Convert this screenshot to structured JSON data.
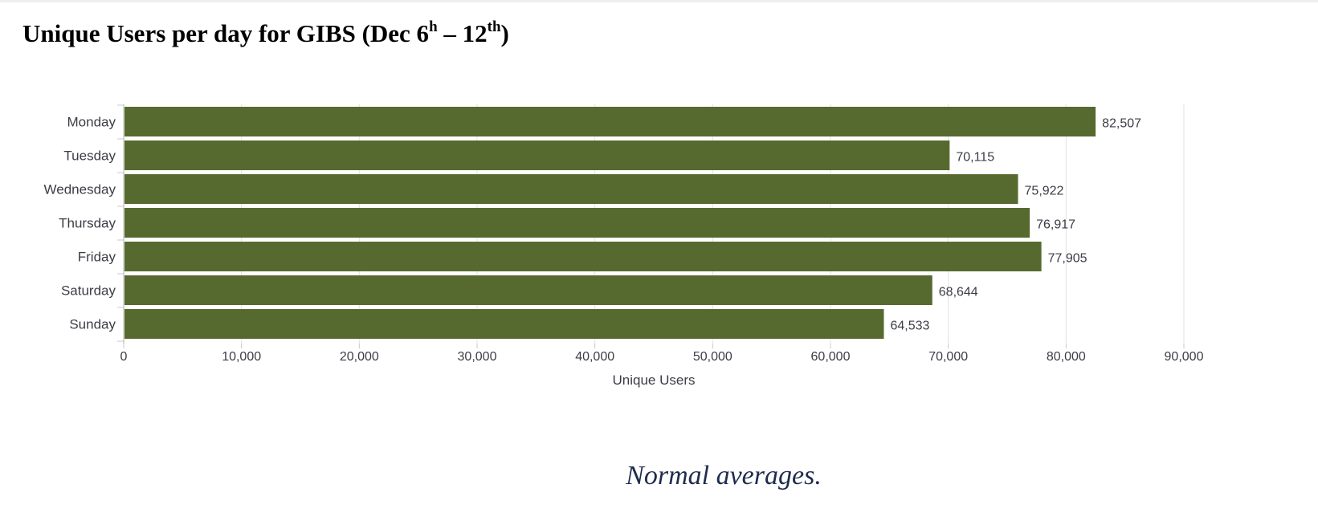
{
  "title": {
    "main": "Unique Users per day for GIBS (Dec 6",
    "sup1": "h",
    "mid": " – 12",
    "sup2": "th",
    "end": ")"
  },
  "caption": "Normal averages.",
  "colors": {
    "bar": "#566a2f",
    "grid": "#e2e2e2",
    "axis": "#c8c8c8",
    "text": "#3c3c46"
  },
  "chart_data": {
    "type": "bar",
    "orientation": "horizontal",
    "categories": [
      "Monday",
      "Tuesday",
      "Wednesday",
      "Thursday",
      "Friday",
      "Saturday",
      "Sunday"
    ],
    "values": [
      82507,
      70115,
      75922,
      76917,
      77905,
      68644,
      64533
    ],
    "data_labels": [
      "82,507",
      "70,115",
      "75,922",
      "76,917",
      "77,905",
      "68,644",
      "64,533"
    ],
    "xlabel": "Unique Users",
    "ylabel": "",
    "xlim": [
      0,
      90000
    ],
    "xticks": [
      0,
      10000,
      20000,
      30000,
      40000,
      50000,
      60000,
      70000,
      80000,
      90000
    ],
    "xtick_labels": [
      "0",
      "10,000",
      "20,000",
      "30,000",
      "40,000",
      "50,000",
      "60,000",
      "70,000",
      "80,000",
      "90,000"
    ],
    "grid": true,
    "legend": "none"
  }
}
